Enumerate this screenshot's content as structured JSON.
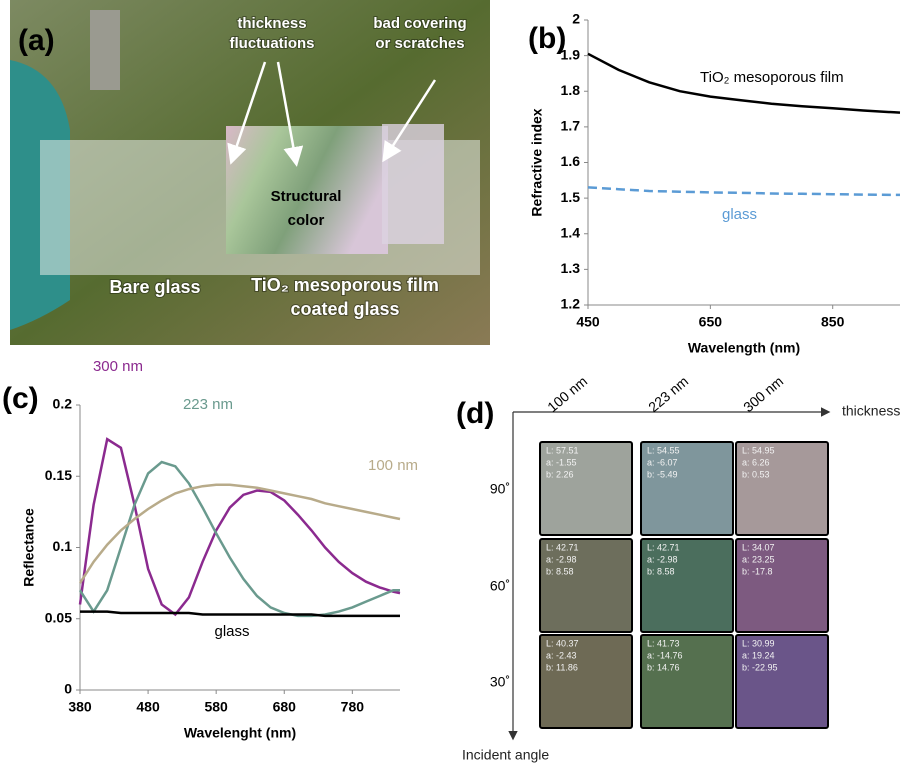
{
  "panel_a": {
    "label": "(a)",
    "thickness_label": [
      "thickness",
      "fluctuations"
    ],
    "covering_label": [
      "bad covering",
      "or scratches"
    ],
    "center_label": [
      "Structural",
      "color"
    ],
    "bare_label": "Bare glass",
    "film_label": [
      "TiO₂ mesoporous film",
      "coated glass"
    ]
  },
  "chart_data": [
    {
      "type": "line",
      "panel_label": "(b)",
      "xlabel": "Wavelength (nm)",
      "ylabel": "Refractive index",
      "x": [
        450,
        500,
        550,
        600,
        650,
        700,
        750,
        800,
        850,
        900,
        950,
        960
      ],
      "xlim": [
        450,
        960
      ],
      "xticks": [
        450,
        650,
        850
      ],
      "ylim": [
        1.2,
        2
      ],
      "yticks": [
        1.2,
        1.3,
        1.4,
        1.5,
        1.6,
        1.7,
        1.8,
        1.9,
        2
      ],
      "series": [
        {
          "name": "TiO₂ mesoporous film",
          "color": "#000000",
          "dashed": false,
          "values": [
            1.905,
            1.86,
            1.825,
            1.8,
            1.785,
            1.775,
            1.765,
            1.758,
            1.752,
            1.746,
            1.741,
            1.74
          ]
        },
        {
          "name": "glass",
          "color": "#5b9bd5",
          "dashed": true,
          "values": [
            1.53,
            1.525,
            1.52,
            1.518,
            1.516,
            1.515,
            1.513,
            1.512,
            1.511,
            1.51,
            1.509,
            1.509
          ]
        }
      ]
    },
    {
      "type": "line",
      "panel_label": "(c)",
      "xlabel": "Wavelenght (nm)",
      "ylabel": "Reflectance",
      "x": [
        380,
        400,
        420,
        440,
        460,
        480,
        500,
        520,
        540,
        560,
        580,
        600,
        620,
        640,
        660,
        680,
        700,
        720,
        740,
        760,
        780,
        800,
        820,
        840,
        850
      ],
      "xlim": [
        380,
        850
      ],
      "xticks": [
        380,
        480,
        580,
        680,
        780
      ],
      "ylim": [
        0,
        0.2
      ],
      "yticks": [
        0,
        0.05,
        0.1,
        0.15,
        0.2
      ],
      "series": [
        {
          "name": "300 nm",
          "color": "#8b2a8f",
          "dashed": false,
          "values": [
            0.06,
            0.13,
            0.176,
            0.17,
            0.13,
            0.085,
            0.06,
            0.053,
            0.065,
            0.09,
            0.112,
            0.128,
            0.137,
            0.14,
            0.139,
            0.133,
            0.123,
            0.112,
            0.1,
            0.09,
            0.082,
            0.076,
            0.072,
            0.069,
            0.068
          ]
        },
        {
          "name": "223 nm",
          "color": "#6a9a8e",
          "dashed": false,
          "values": [
            0.07,
            0.055,
            0.07,
            0.1,
            0.13,
            0.152,
            0.16,
            0.157,
            0.145,
            0.128,
            0.11,
            0.093,
            0.078,
            0.066,
            0.058,
            0.054,
            0.052,
            0.052,
            0.053,
            0.055,
            0.058,
            0.062,
            0.066,
            0.07,
            0.07
          ]
        },
        {
          "name": "100 nm",
          "color": "#b8ab8a",
          "dashed": false,
          "values": [
            0.075,
            0.09,
            0.102,
            0.112,
            0.12,
            0.127,
            0.133,
            0.138,
            0.141,
            0.143,
            0.144,
            0.144,
            0.143,
            0.142,
            0.14,
            0.138,
            0.136,
            0.134,
            0.131,
            0.129,
            0.127,
            0.125,
            0.123,
            0.121,
            0.12
          ]
        },
        {
          "name": "glass",
          "color": "#000000",
          "dashed": false,
          "values": [
            0.055,
            0.055,
            0.055,
            0.054,
            0.054,
            0.054,
            0.054,
            0.054,
            0.054,
            0.053,
            0.053,
            0.053,
            0.053,
            0.053,
            0.053,
            0.053,
            0.053,
            0.053,
            0.052,
            0.052,
            0.052,
            0.052,
            0.052,
            0.052,
            0.052
          ]
        }
      ]
    }
  ],
  "panel_d": {
    "label": "(d)",
    "columns": [
      "100 nm",
      "223 nm",
      "300 nm"
    ],
    "column_axis": "thickness",
    "rows": [
      "90˚",
      "60˚",
      "30˚"
    ],
    "row_axis": "Incident angle",
    "cells": [
      [
        {
          "color": "#9ea39c",
          "lines": [
            "L: 57.51",
            "a: -1.55",
            "b: 2.26"
          ]
        },
        {
          "color": "#7f969c",
          "lines": [
            "L: 54.55",
            "a: -6.07",
            "b: -5.49"
          ]
        },
        {
          "color": "#a6999a",
          "lines": [
            "L: 54.95",
            "a: 6.26",
            "b: 0.53"
          ]
        }
      ],
      [
        {
          "color": "#6d6e5c",
          "lines": [
            "L: 42.71",
            "a: -2.98",
            "b: 8.58"
          ]
        },
        {
          "color": "#4b6e5d",
          "lines": [
            "L: 42.71",
            "a: -2.98",
            "b: 8.58"
          ]
        },
        {
          "color": "#7d5a80",
          "lines": [
            "L: 34.07",
            "a: 23.25",
            "b: -17.8"
          ]
        }
      ],
      [
        {
          "color": "#6e6a55",
          "lines": [
            "L: 40.37",
            "a: -2.43",
            "b: 11.86"
          ]
        },
        {
          "color": "#55704f",
          "lines": [
            "L: 41.73",
            "a: -14.76",
            "b: 14.76"
          ]
        },
        {
          "color": "#6a5589",
          "lines": [
            "L: 30.99",
            "a: 19.24",
            "b: -22.95"
          ]
        }
      ]
    ]
  }
}
